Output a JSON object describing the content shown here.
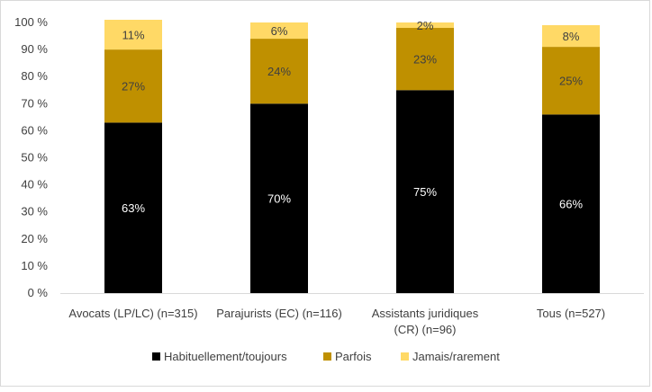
{
  "chart_data": {
    "type": "bar",
    "stacked": true,
    "categories": [
      [
        "Avocats (LP/LC) (n=315)"
      ],
      [
        "Parajurists (EC) (n=116)"
      ],
      [
        "Assistants juridiques",
        "(CR) (n=96)"
      ],
      [
        "Tous (n=527)"
      ]
    ],
    "series": [
      {
        "name": "Habituellement/toujours",
        "color": "#000000",
        "label_color": "#ffffff",
        "values": [
          63,
          70,
          75,
          66
        ],
        "labels": [
          "63%",
          "70%",
          "75%",
          "66%"
        ]
      },
      {
        "name": "Parfois",
        "color": "#bf9000",
        "label_color": "#404040",
        "values": [
          27,
          24,
          23,
          25
        ],
        "labels": [
          "27%",
          "24%",
          "23%",
          "25%"
        ]
      },
      {
        "name": "Jamais/rarement",
        "color": "#ffd966",
        "label_color": "#404040",
        "values": [
          11,
          6,
          2,
          8
        ],
        "labels": [
          "11%",
          "6%",
          "2%",
          "8%"
        ]
      }
    ],
    "ylim": [
      0,
      100
    ],
    "yticks": [
      "0 %",
      "10 %",
      "20 %",
      "30 %",
      "40 %",
      "50 %",
      "60 %",
      "70 %",
      "80 %",
      "90 %",
      "100 %"
    ],
    "grid": false,
    "legend_position": "bottom"
  }
}
